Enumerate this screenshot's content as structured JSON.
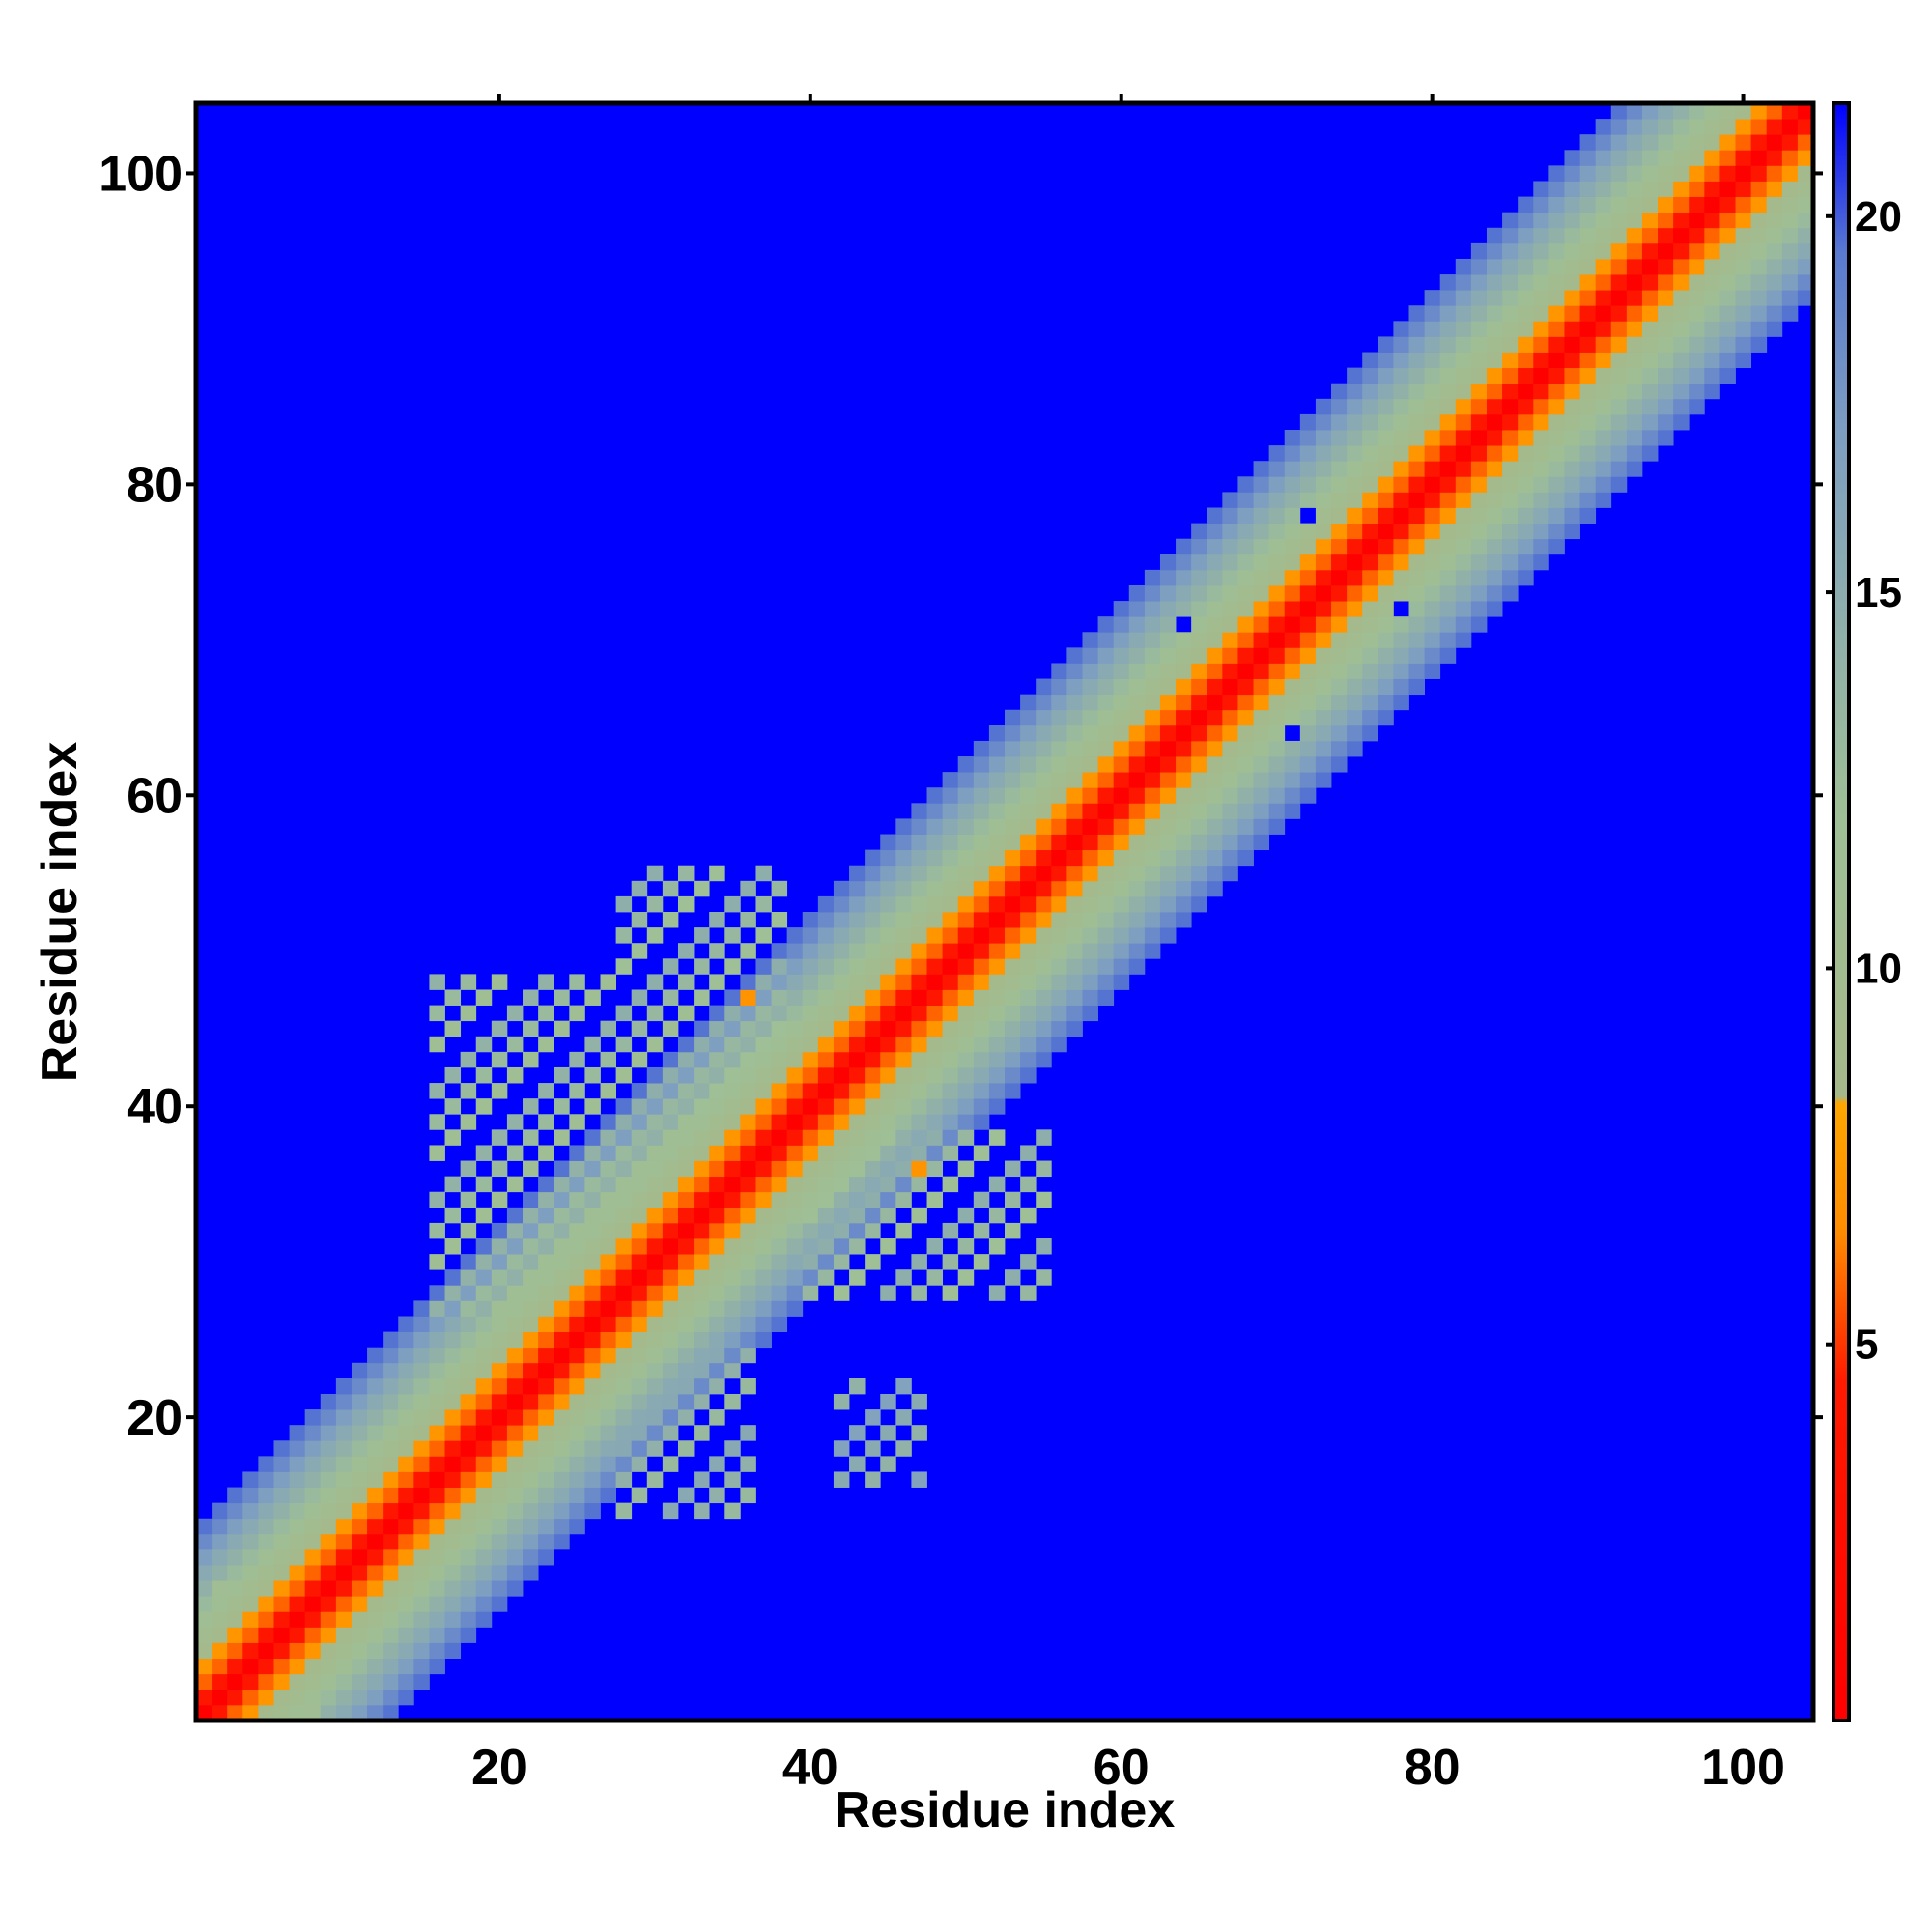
{
  "chart_data": {
    "type": "heatmap",
    "title": "",
    "xlabel": "Residue index",
    "ylabel": "Residue index",
    "n_residues": 104,
    "xlim": [
      0.5,
      104.5
    ],
    "ylim": [
      0.5,
      104.5
    ],
    "x_ticks": [
      20,
      40,
      60,
      80,
      100
    ],
    "y_ticks": [
      20,
      40,
      60,
      80,
      100
    ],
    "x_tick_labels": [
      "20",
      "40",
      "60",
      "80",
      "100"
    ],
    "y_tick_labels": [
      "20",
      "40",
      "60",
      "80",
      "100"
    ],
    "grid": false,
    "value_description": "pairwise residue distance",
    "colorbar": {
      "range": [
        0,
        21.5
      ],
      "ticks": [
        5,
        10,
        15,
        20
      ],
      "tick_labels": [
        "5",
        "10",
        "15",
        "20"
      ],
      "stops": [
        {
          "value": 0,
          "color": "#ff0000"
        },
        {
          "value": 4.5,
          "color": "#ff1a00"
        },
        {
          "value": 6.5,
          "color": "#ff8c00"
        },
        {
          "value": 8.2,
          "color": "#ffa500"
        },
        {
          "value": 8.3,
          "color": "#a5b88a"
        },
        {
          "value": 12,
          "color": "#9fbf96"
        },
        {
          "value": 17,
          "color": "#7f9fc0"
        },
        {
          "value": 19.5,
          "color": "#5a7ad0"
        },
        {
          "value": 21.5,
          "color": "#0000ff"
        }
      ]
    },
    "background_value": 21.5,
    "diagonal_profile": {
      "offsets": [
        0,
        1,
        2,
        3,
        4,
        5,
        6,
        7,
        8,
        9,
        10,
        11,
        12
      ],
      "values": [
        0,
        3.8,
        5.8,
        7.2,
        8.9,
        10.3,
        11.5,
        12.8,
        14.2,
        15.5,
        17.0,
        18.4,
        19.6
      ]
    },
    "off_diagonal_regions": [
      {
        "i": [
          2,
          8
        ],
        "j": [
          1,
          9
        ],
        "value": 11
      },
      {
        "i": [
          16,
          32
        ],
        "j": [
          27,
          48
        ],
        "value": 11.5
      },
      {
        "i": [
          28,
          38
        ],
        "j": [
          38,
          55
        ],
        "value": 12
      },
      {
        "i": [
          40,
          55
        ],
        "j": [
          28,
          38
        ],
        "value": 12
      },
      {
        "i": [
          28,
          36
        ],
        "j": [
          14,
          24
        ],
        "value": 13
      },
      {
        "i": [
          42,
          47
        ],
        "j": [
          16,
          22
        ],
        "value": 14
      }
    ],
    "outliers": [
      {
        "x": 64,
        "y": 71,
        "value": 21.5
      },
      {
        "x": 72,
        "y": 78,
        "value": 21.5
      },
      {
        "x": 78,
        "y": 72,
        "value": 21.5
      },
      {
        "x": 71,
        "y": 64,
        "value": 21.5
      },
      {
        "x": 36,
        "y": 47,
        "value": 7
      },
      {
        "x": 47,
        "y": 36,
        "value": 7
      }
    ]
  }
}
